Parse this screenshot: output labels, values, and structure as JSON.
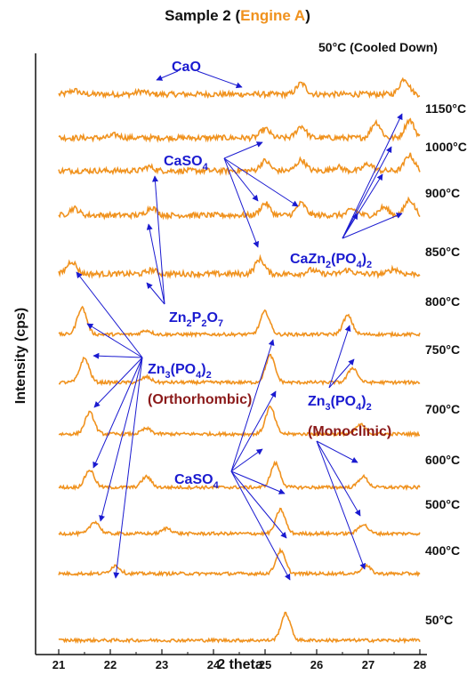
{
  "title": {
    "prefix": "Sample 2 (",
    "highlight": "Engine A",
    "suffix": ")"
  },
  "colors": {
    "trace": "#F0921E",
    "annotation": "#1A1AD0",
    "annotation_red": "#8B1A1A"
  },
  "chart_data": {
    "type": "line",
    "title": "Sample 2 (Engine A)",
    "xlabel": "2 theta",
    "ylabel": "Intensity (cps)",
    "xlim": [
      21,
      28
    ],
    "xticks": [
      "21",
      "22",
      "23",
      "24",
      "25",
      "26",
      "27",
      "28"
    ],
    "y_ticks_shown": false,
    "grid": false,
    "series": [
      {
        "name": "50°C (Cooled Down)",
        "peaks": [
          [
            21.3,
            0.2
          ],
          [
            22.6,
            0.15
          ],
          [
            25.7,
            0.55
          ],
          [
            27.7,
            0.8
          ]
        ]
      },
      {
        "name": "1150°C",
        "peaks": [
          [
            22.1,
            0.15
          ],
          [
            25.0,
            0.45
          ],
          [
            25.7,
            0.6
          ],
          [
            27.15,
            0.8
          ],
          [
            27.8,
            0.9
          ]
        ]
      },
      {
        "name": "1000°C",
        "peaks": [
          [
            22.75,
            0.2
          ],
          [
            25.0,
            0.5
          ],
          [
            25.7,
            0.55
          ],
          [
            26.4,
            0.2
          ],
          [
            27.0,
            0.35
          ],
          [
            27.8,
            0.8
          ]
        ]
      },
      {
        "name": "900°C",
        "peaks": [
          [
            21.3,
            0.35
          ],
          [
            22.8,
            0.4
          ],
          [
            25.0,
            0.6
          ],
          [
            25.7,
            0.6
          ],
          [
            26.7,
            0.3
          ],
          [
            27.3,
            0.4
          ],
          [
            27.8,
            0.8
          ]
        ]
      },
      {
        "name": "850°C",
        "peaks": [
          [
            21.25,
            0.65
          ],
          [
            22.8,
            0.2
          ],
          [
            24.9,
            0.75
          ],
          [
            25.9,
            0.2
          ],
          [
            26.6,
            0.2
          ],
          [
            27.5,
            0.25
          ]
        ]
      },
      {
        "name": "800°C",
        "peaks": [
          [
            21.45,
            1.0
          ],
          [
            22.7,
            0.15
          ],
          [
            25.0,
            0.85
          ],
          [
            26.6,
            0.7
          ]
        ]
      },
      {
        "name": "750°C",
        "peaks": [
          [
            21.5,
            0.9
          ],
          [
            22.7,
            0.2
          ],
          [
            25.1,
            1.0
          ],
          [
            26.7,
            0.55
          ]
        ]
      },
      {
        "name": "700°C",
        "peaks": [
          [
            21.6,
            0.8
          ],
          [
            22.7,
            0.2
          ],
          [
            25.1,
            1.0
          ],
          [
            26.85,
            0.35
          ]
        ]
      },
      {
        "name": "600°C",
        "peaks": [
          [
            21.6,
            0.65
          ],
          [
            22.7,
            0.4
          ],
          [
            25.2,
            0.9
          ],
          [
            26.9,
            0.4
          ]
        ]
      },
      {
        "name": "500°C",
        "peaks": [
          [
            21.7,
            0.45
          ],
          [
            23.1,
            0.2
          ],
          [
            25.3,
            0.9
          ],
          [
            26.9,
            0.35
          ]
        ]
      },
      {
        "name": "400°C",
        "peaks": [
          [
            22.1,
            0.3
          ],
          [
            25.3,
            0.85
          ],
          [
            26.95,
            0.3
          ]
        ]
      },
      {
        "name": "50°C",
        "peaks": [
          [
            25.4,
            1.0
          ]
        ]
      }
    ]
  },
  "annotations": {
    "cao": "CaO",
    "caso4_top": "CaSO",
    "caso4_top_sub": "4",
    "cazn": "CaZn",
    "cazn_sub1": "2",
    "cazn_mid": "(PO",
    "cazn_sub2": "4",
    "cazn_end": ")",
    "cazn_sub3": "2",
    "znppo": "Zn",
    "znppo_sub1": "2",
    "znppo_p": "P",
    "znppo_sub2": "2",
    "znppo_o": "O",
    "znppo_sub3": "7",
    "zn3_left": "Zn",
    "zn3_left_sub1": "3",
    "zn3_left_mid": "(PO",
    "zn3_left_sub2": "4",
    "zn3_left_end": ")",
    "zn3_left_sub3": "2",
    "ortho": "(Orthorhombic)",
    "zn3_right": "Zn",
    "zn3_right_sub1": "3",
    "zn3_right_mid": "(PO",
    "zn3_right_sub2": "4",
    "zn3_right_end": ")",
    "zn3_right_sub3": "2",
    "mono": "(Monoclinic)",
    "caso4_bot": "CaSO",
    "caso4_bot_sub": "4"
  }
}
